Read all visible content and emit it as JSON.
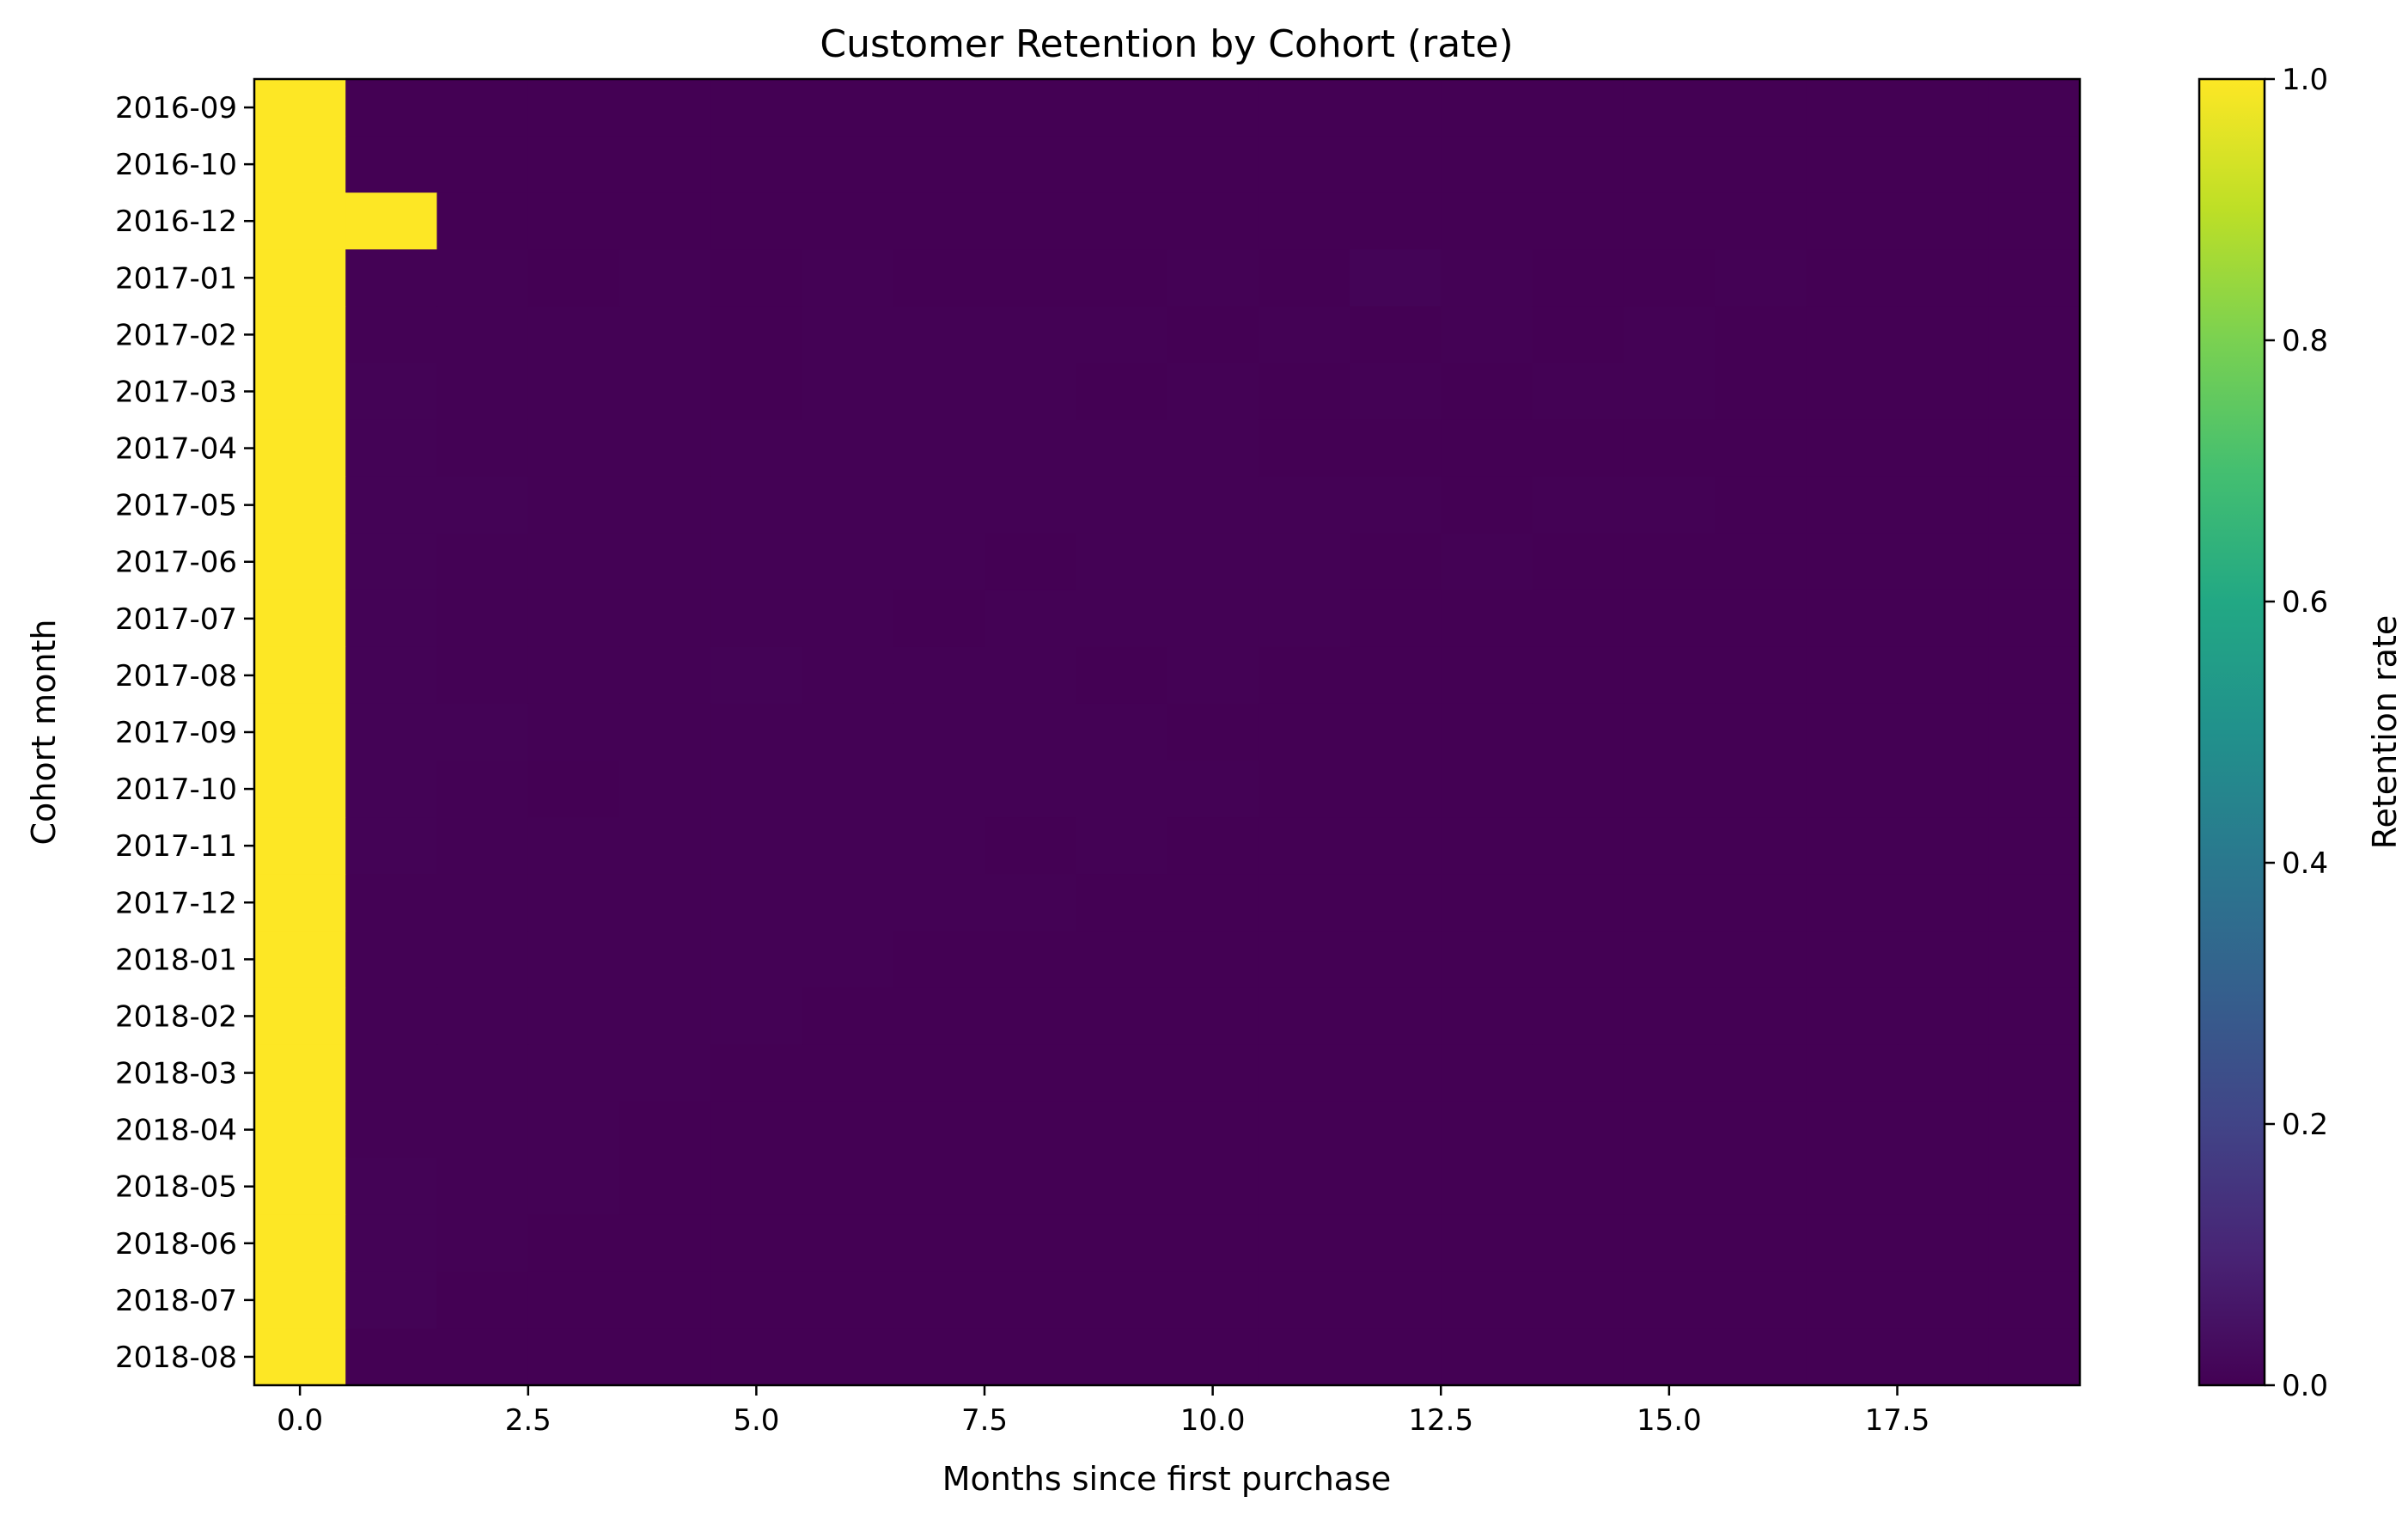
{
  "chart_data": {
    "type": "heatmap",
    "title": "Customer Retention by Cohort (rate)",
    "xlabel": "Months since first purchase",
    "ylabel": "Cohort month",
    "colorbar_label": "Retention rate",
    "colormap": "viridis",
    "vmin": 0.0,
    "vmax": 1.0,
    "x_min": -0.5,
    "x_max": 19.5,
    "x_ticks": [
      0.0,
      2.5,
      5.0,
      7.5,
      10.0,
      12.5,
      15.0,
      17.5
    ],
    "x_tick_labels": [
      "0.0",
      "2.5",
      "5.0",
      "7.5",
      "10.0",
      "12.5",
      "15.0",
      "17.5"
    ],
    "colorbar_ticks": [
      0.0,
      0.2,
      0.4,
      0.6,
      0.8,
      1.0
    ],
    "colorbar_tick_labels": [
      "0.0",
      "0.2",
      "0.4",
      "0.6",
      "0.8",
      "1.0"
    ],
    "months_since": [
      0,
      1,
      2,
      3,
      4,
      5,
      6,
      7,
      8,
      9,
      10,
      11,
      12,
      13,
      14,
      15,
      16,
      17,
      18,
      19
    ],
    "cohorts": [
      "2016-09",
      "2016-10",
      "2016-12",
      "2017-01",
      "2017-02",
      "2017-03",
      "2017-04",
      "2017-05",
      "2017-06",
      "2017-07",
      "2017-08",
      "2017-09",
      "2017-10",
      "2017-11",
      "2017-12",
      "2018-01",
      "2018-02",
      "2018-03",
      "2018-04",
      "2018-05",
      "2018-06",
      "2018-07",
      "2018-08"
    ],
    "values": [
      [
        1.0,
        0,
        0,
        0,
        0,
        0,
        0,
        0,
        0,
        0,
        0,
        0,
        0,
        0,
        0,
        0,
        0,
        0,
        0,
        0
      ],
      [
        1.0,
        0,
        0,
        0,
        0,
        0,
        0,
        0,
        0,
        0,
        0,
        0,
        0,
        0,
        0,
        0,
        0,
        0,
        0,
        0
      ],
      [
        1.0,
        1.0,
        0,
        0,
        0,
        0,
        0,
        0,
        0,
        0,
        0,
        0,
        0,
        0,
        0,
        0,
        0,
        0,
        0,
        0
      ],
      [
        1.0,
        0.003,
        0.003,
        0.001,
        0.004,
        0.001,
        0.004,
        0.001,
        0.001,
        0,
        0.004,
        0.001,
        0.008,
        0.004,
        0.001,
        0.001,
        0.003,
        0.001,
        0.001,
        0.001
      ],
      [
        1.0,
        0.002,
        0.003,
        0.002,
        0.004,
        0.001,
        0.002,
        0.002,
        0.002,
        0.002,
        0.001,
        0.003,
        0.001,
        0.002,
        0.001,
        0.002,
        0.001,
        0.001,
        0,
        0
      ],
      [
        1.0,
        0.005,
        0.004,
        0.004,
        0.004,
        0.001,
        0.002,
        0.003,
        0.003,
        0.001,
        0.004,
        0.001,
        0.002,
        0.001,
        0.002,
        0.002,
        0.001,
        0.001,
        0,
        0
      ],
      [
        1.0,
        0.006,
        0.002,
        0.002,
        0.003,
        0.003,
        0.004,
        0.003,
        0.003,
        0.002,
        0.002,
        0.001,
        0.001,
        0.001,
        0.001,
        0.001,
        0.001,
        0,
        0,
        0
      ],
      [
        1.0,
        0.005,
        0.005,
        0.004,
        0.003,
        0.003,
        0.004,
        0.002,
        0.003,
        0.003,
        0.002,
        0.002,
        0.002,
        0.001,
        0.002,
        0.002,
        0,
        0,
        0,
        0
      ],
      [
        1.0,
        0.005,
        0.003,
        0.004,
        0.003,
        0.004,
        0.004,
        0.002,
        0.001,
        0.002,
        0.002,
        0.003,
        0.001,
        0.002,
        0.001,
        0,
        0,
        0,
        0,
        0
      ],
      [
        1.0,
        0.005,
        0.003,
        0.002,
        0.003,
        0.002,
        0.003,
        0.001,
        0.002,
        0.003,
        0.002,
        0.003,
        0.001,
        0.001,
        0,
        0,
        0,
        0,
        0,
        0
      ],
      [
        1.0,
        0.007,
        0.003,
        0.003,
        0.004,
        0.005,
        0.003,
        0.002,
        0.002,
        0.001,
        0.002,
        0.001,
        0.001,
        0,
        0,
        0,
        0,
        0,
        0,
        0
      ],
      [
        1.0,
        0.007,
        0.005,
        0.003,
        0.004,
        0.002,
        0.002,
        0.002,
        0.003,
        0.002,
        0.001,
        0.001,
        0,
        0,
        0,
        0,
        0,
        0,
        0,
        0
      ],
      [
        1.0,
        0.007,
        0.003,
        0.001,
        0.002,
        0.002,
        0.002,
        0.004,
        0.003,
        0.002,
        0.002,
        0,
        0,
        0,
        0,
        0,
        0,
        0,
        0,
        0
      ],
      [
        1.0,
        0.006,
        0.004,
        0.002,
        0.002,
        0.002,
        0.002,
        0.002,
        0.001,
        0.002,
        0,
        0,
        0,
        0,
        0,
        0,
        0,
        0,
        0,
        0
      ],
      [
        1.0,
        0.002,
        0.003,
        0.003,
        0.003,
        0.002,
        0.002,
        0.002,
        0.002,
        0,
        0,
        0,
        0,
        0,
        0,
        0,
        0,
        0,
        0,
        0
      ],
      [
        1.0,
        0.003,
        0.004,
        0.003,
        0.003,
        0.002,
        0.002,
        0.001,
        0,
        0,
        0,
        0,
        0,
        0,
        0,
        0,
        0,
        0,
        0,
        0
      ],
      [
        1.0,
        0.003,
        0.004,
        0.003,
        0.003,
        0.002,
        0.001,
        0,
        0,
        0,
        0,
        0,
        0,
        0,
        0,
        0,
        0,
        0,
        0,
        0
      ],
      [
        1.0,
        0.004,
        0.003,
        0.003,
        0.002,
        0.001,
        0,
        0,
        0,
        0,
        0,
        0,
        0,
        0,
        0,
        0,
        0,
        0,
        0,
        0
      ],
      [
        1.0,
        0.004,
        0.003,
        0.002,
        0.001,
        0,
        0,
        0,
        0,
        0,
        0,
        0,
        0,
        0,
        0,
        0,
        0,
        0,
        0,
        0
      ],
      [
        1.0,
        0.005,
        0.003,
        0.002,
        0,
        0,
        0,
        0,
        0,
        0,
        0,
        0,
        0,
        0,
        0,
        0,
        0,
        0,
        0,
        0
      ],
      [
        1.0,
        0.005,
        0.003,
        0,
        0,
        0,
        0,
        0,
        0,
        0,
        0,
        0,
        0,
        0,
        0,
        0,
        0,
        0,
        0,
        0
      ],
      [
        1.0,
        0.005,
        0,
        0,
        0,
        0,
        0,
        0,
        0,
        0,
        0,
        0,
        0,
        0,
        0,
        0,
        0,
        0,
        0,
        0
      ],
      [
        1.0,
        0,
        0,
        0,
        0,
        0,
        0,
        0,
        0,
        0,
        0,
        0,
        0,
        0,
        0,
        0,
        0,
        0,
        0,
        0
      ]
    ],
    "grid": false,
    "colorbar_position": "right"
  }
}
